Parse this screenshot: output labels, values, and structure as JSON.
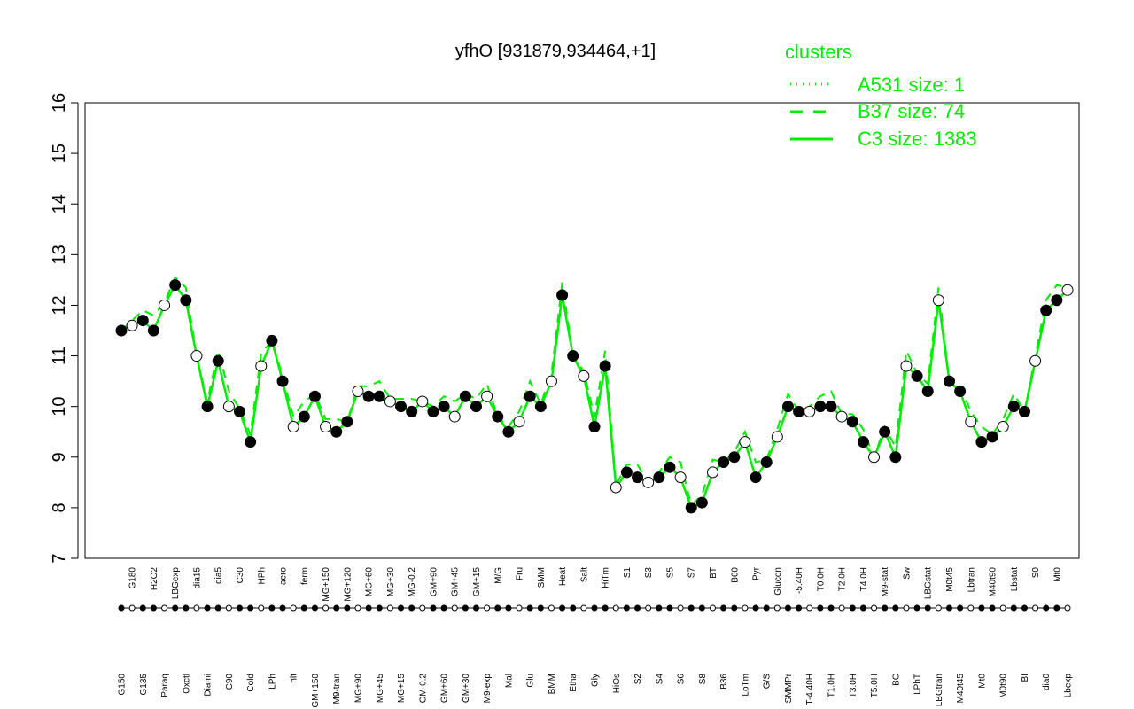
{
  "chart_data": {
    "type": "line",
    "title": "yfhO [931879,934464,+1]",
    "xlabel": "",
    "ylabel": "",
    "ylim": [
      7,
      16
    ],
    "yticks": [
      7,
      8,
      9,
      10,
      11,
      12,
      13,
      14,
      15,
      16
    ],
    "grid": false,
    "colors": {
      "lines": "#00ee00",
      "legend_text": "#00ee00",
      "points_filled": "#000000",
      "points_open": "#ffffff"
    },
    "legend": {
      "position": "top-right",
      "title": "clusters",
      "entries": [
        {
          "label": "A531 size: 1",
          "style": "dotted"
        },
        {
          "label": "B37 size: 74",
          "style": "dashed"
        },
        {
          "label": "C3 size: 1383",
          "style": "solid"
        }
      ]
    },
    "x_labels": [
      "G150",
      "G180",
      "G135",
      "H2O2",
      "Paraq",
      "LBGexp",
      "Oxctl",
      "dia15",
      "Diami",
      "dia5",
      "C90",
      "C30",
      "Cold",
      "HPh",
      "LPh",
      "aero",
      "nit",
      "ferm",
      "GM+150",
      "MG+150",
      "M9-tran",
      "MG+120",
      "MG+90",
      "MG+60",
      "MG+45",
      "MG+30",
      "MG+15",
      "MG-0.2",
      "GM-0.2",
      "GM+90",
      "GM+60",
      "GM+45",
      "GM+30",
      "GM+15",
      "M9-exp",
      "M/G",
      "Mal",
      "Fru",
      "Glu",
      "SMM",
      "BMM",
      "Heat",
      "Etha",
      "Salt",
      "Gly",
      "HiTm",
      "HiOs",
      "S1",
      "S2",
      "S3",
      "S4",
      "S5",
      "S6",
      "S7",
      "S8",
      "BT",
      "B36",
      "B60",
      "LoTm",
      "Pyr",
      "G/S",
      "Glucon",
      "SMMPr",
      "T-5.40H",
      "T-4.40H",
      "T0.0H",
      "T1.0H",
      "T2.0H",
      "T3.0H",
      "T4.0H",
      "T5.0H",
      "M9-stat",
      "BC",
      "Sw",
      "LPhT",
      "LBGstat",
      "LBGtran",
      "M0t45",
      "M40t45",
      "Lbtran",
      "Mt0",
      "M40t90",
      "M0t90",
      "Lbstat",
      "BI",
      "S0",
      "dia0",
      "Mt0",
      "Lbexp"
    ],
    "series": [
      {
        "name": "",
        "values": [
          11.5,
          11.6,
          11.7,
          11.5,
          12.0,
          12.4,
          12.1,
          11.0,
          10.0,
          10.9,
          10.0,
          9.9,
          9.3,
          10.8,
          11.3,
          10.5,
          9.6,
          9.8,
          10.2,
          9.6,
          9.5,
          9.7,
          10.3,
          10.2,
          10.2,
          10.1,
          10.0,
          9.9,
          10.1,
          9.9,
          10.0,
          9.8,
          10.2,
          10.0,
          10.2,
          9.8,
          9.5,
          9.7,
          10.2,
          10.0,
          10.5,
          12.2,
          11.0,
          10.6,
          9.6,
          10.8,
          8.4,
          8.7,
          8.6,
          8.5,
          8.6,
          8.8,
          8.6,
          8.0,
          8.1,
          8.7,
          8.9,
          9.0,
          9.3,
          8.6,
          8.9,
          9.4,
          10.0,
          9.9,
          9.9,
          10.0,
          10.0,
          9.8,
          9.7,
          9.3,
          9.0,
          9.5,
          9.0,
          10.8,
          10.6,
          10.3,
          12.1,
          10.5,
          10.3,
          9.7,
          9.3,
          9.4,
          9.6,
          10.0,
          9.9,
          10.9,
          11.9,
          12.1,
          12.3
        ]
      }
    ]
  }
}
